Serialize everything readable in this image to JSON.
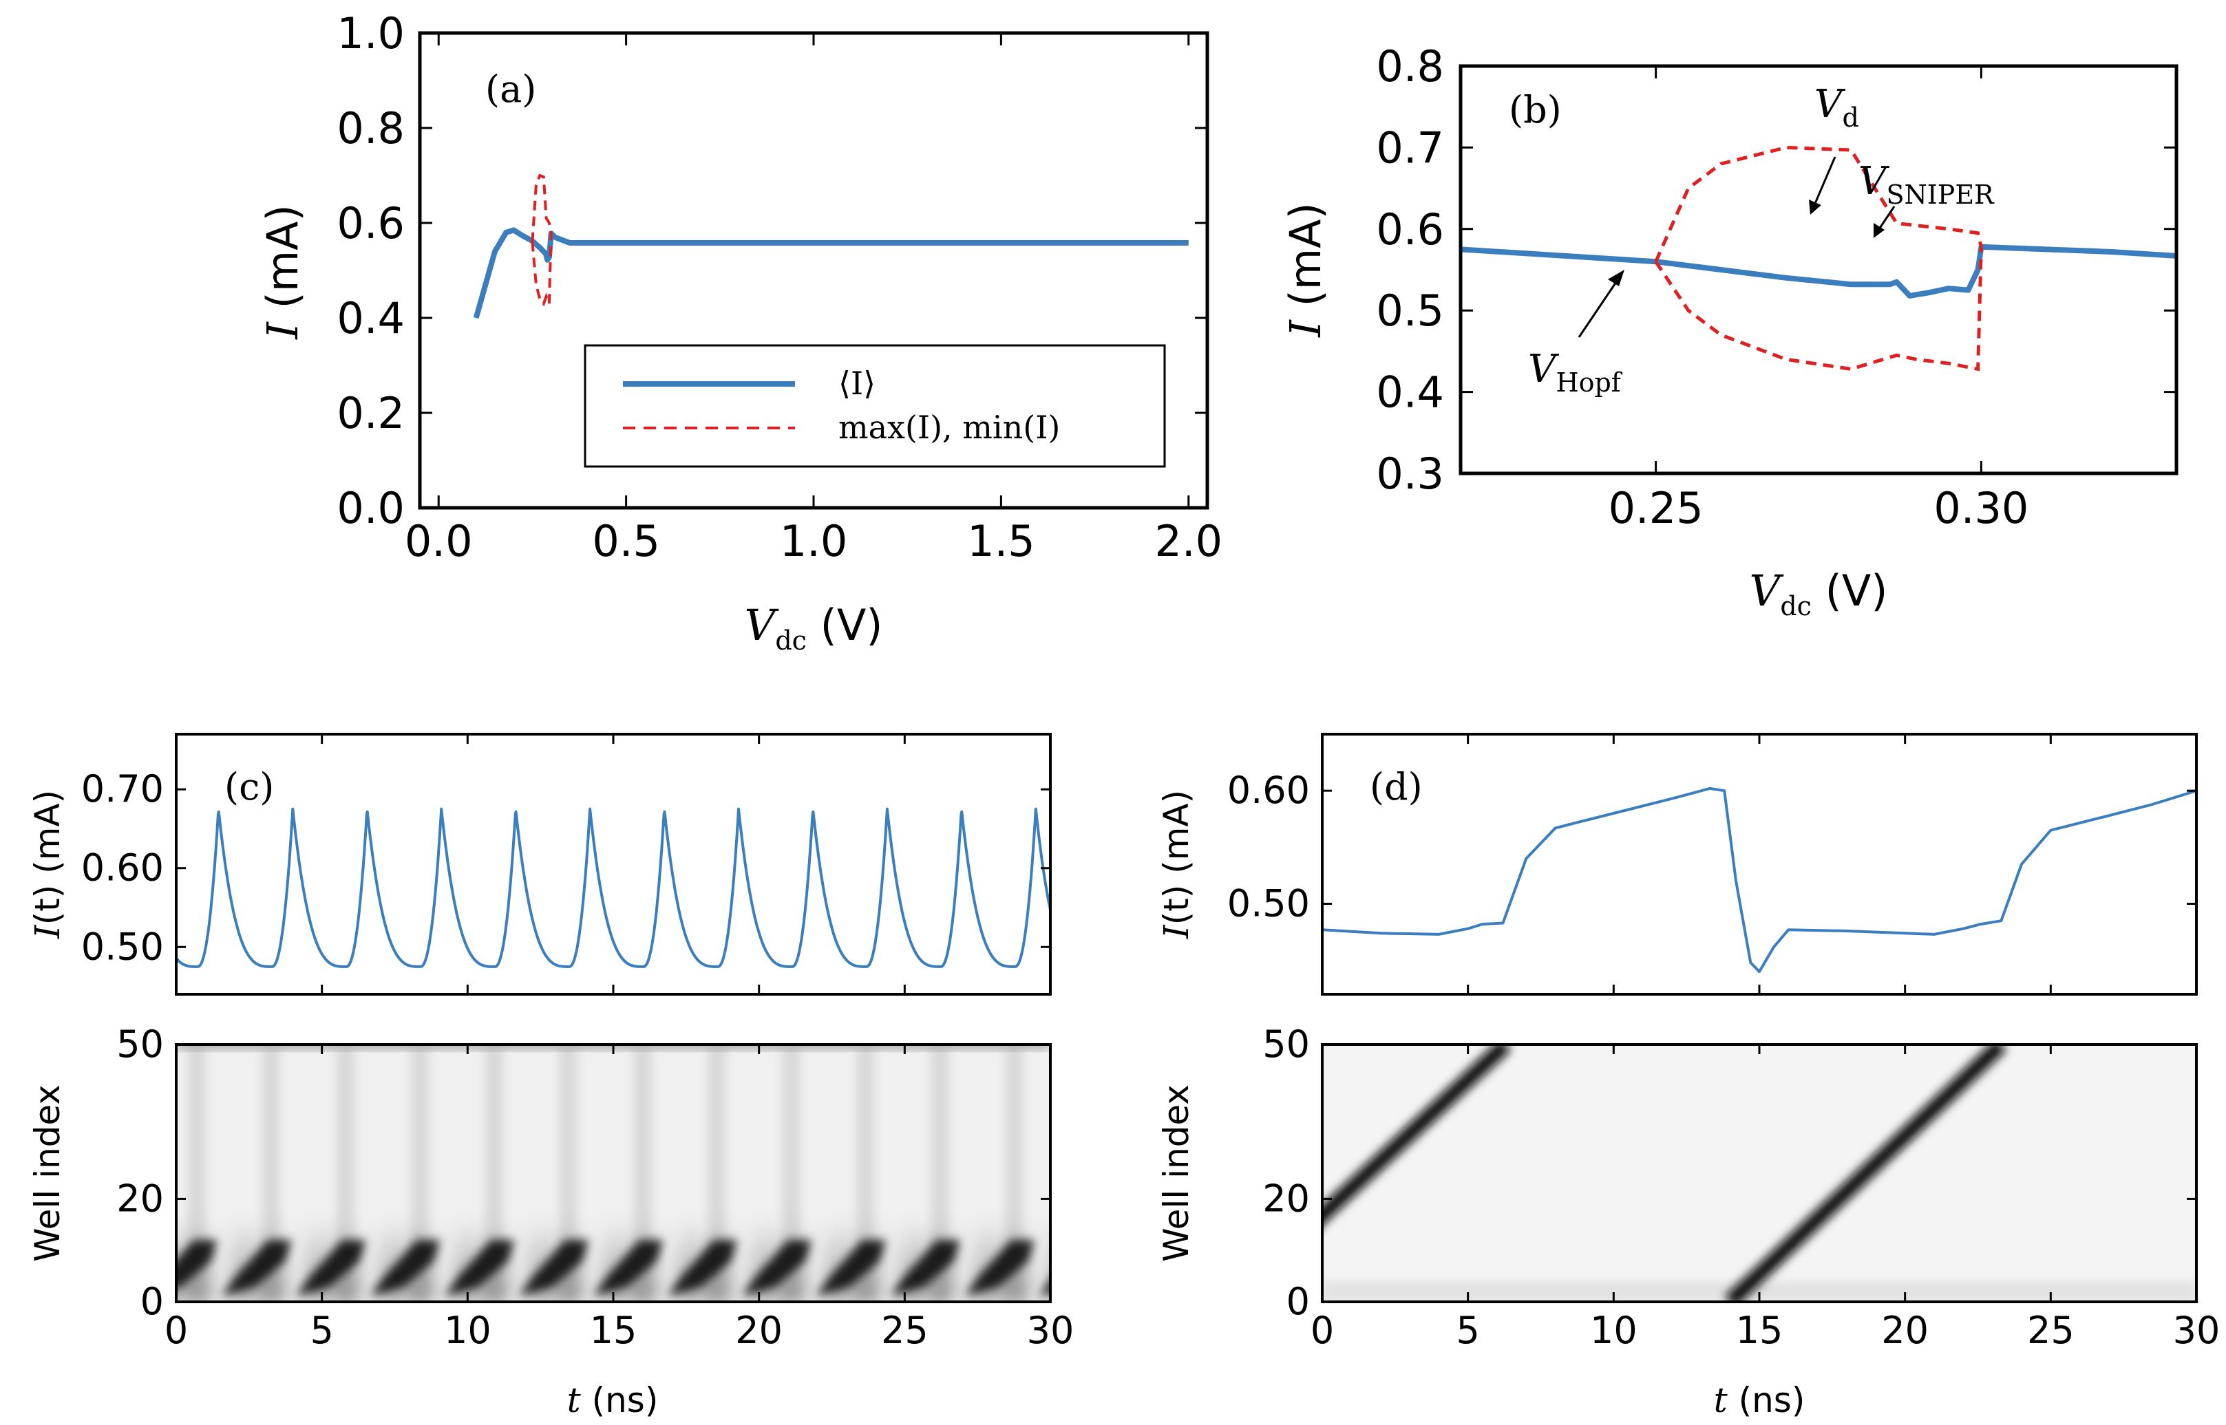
{
  "figure_colors": {
    "mean": "#3a7ebf",
    "extrema": "#e02020",
    "axis": "#000000"
  },
  "chart_data": [
    {
      "id": "a",
      "type": "line",
      "panel_label": "(a)",
      "xlabel_var": "V",
      "xlabel_sub": "dc",
      "xlabel_unit": " (V)",
      "ylabel_var": "I",
      "ylabel_unit": " (mA)",
      "xlim": [
        -0.05,
        2.05
      ],
      "ylim": [
        0.0,
        1.0
      ],
      "xticks": [
        "0.0",
        "0.5",
        "1.0",
        "1.5",
        "2.0"
      ],
      "xtick_values": [
        0.0,
        0.5,
        1.0,
        1.5,
        2.0
      ],
      "yticks": [
        "0.0",
        "0.2",
        "0.4",
        "0.6",
        "0.8",
        "1.0"
      ],
      "ytick_values": [
        0.0,
        0.2,
        0.4,
        0.6,
        0.8,
        1.0
      ],
      "legend": {
        "placement": "lower-right",
        "mean_label": "⟨I⟩",
        "extrema_label": "max(I), min(I)"
      },
      "series": [
        {
          "name": "⟨I⟩",
          "style": "solid",
          "x": [
            0.1,
            0.15,
            0.18,
            0.2,
            0.22,
            0.25,
            0.27,
            0.286,
            0.29,
            0.295,
            0.3,
            0.31,
            0.35,
            0.5,
            1.0,
            1.5,
            2.0
          ],
          "y": [
            0.4,
            0.54,
            0.58,
            0.585,
            0.575,
            0.562,
            0.548,
            0.535,
            0.522,
            0.528,
            0.578,
            0.57,
            0.558,
            0.558,
            0.558,
            0.558,
            0.558
          ]
        },
        {
          "name": "max(I)",
          "style": "dashed",
          "x": [
            0.25,
            0.26,
            0.27,
            0.28,
            0.287,
            0.295,
            0.3
          ],
          "y": [
            0.56,
            0.68,
            0.7,
            0.697,
            0.61,
            0.6,
            0.58
          ]
        },
        {
          "name": "min(I)",
          "style": "dashed",
          "x": [
            0.25,
            0.26,
            0.27,
            0.28,
            0.287,
            0.295,
            0.3
          ],
          "y": [
            0.56,
            0.47,
            0.44,
            0.43,
            0.445,
            0.43,
            0.58
          ]
        }
      ]
    },
    {
      "id": "b",
      "type": "line",
      "panel_label": "(b)",
      "xlabel_var": "V",
      "xlabel_sub": "dc",
      "xlabel_unit": " (V)",
      "ylabel_var": "I",
      "ylabel_unit": " (mA)",
      "xlim": [
        0.22,
        0.33
      ],
      "ylim": [
        0.3,
        0.8
      ],
      "xticks": [
        "0.25",
        "0.30"
      ],
      "xtick_values": [
        0.25,
        0.3
      ],
      "yticks": [
        "0.3",
        "0.4",
        "0.5",
        "0.6",
        "0.7",
        "0.8"
      ],
      "ytick_values": [
        0.3,
        0.4,
        0.5,
        0.6,
        0.7,
        0.8
      ],
      "annotations": {
        "hopf_var": "V",
        "hopf_sub": "Hopf",
        "d_var": "V",
        "d_sub": "d",
        "sniper_var": "V",
        "sniper_sub": "SNIPER"
      },
      "series": [
        {
          "name": "⟨I⟩",
          "style": "solid",
          "x": [
            0.22,
            0.23,
            0.24,
            0.25,
            0.26,
            0.27,
            0.28,
            0.286,
            0.287,
            0.289,
            0.292,
            0.295,
            0.298,
            0.2995,
            0.3,
            0.31,
            0.32,
            0.33
          ],
          "y": [
            0.575,
            0.57,
            0.565,
            0.56,
            0.55,
            0.54,
            0.532,
            0.532,
            0.535,
            0.518,
            0.522,
            0.527,
            0.525,
            0.55,
            0.578,
            0.575,
            0.572,
            0.567
          ]
        },
        {
          "name": "max(I)",
          "style": "dashed",
          "x": [
            0.25,
            0.255,
            0.26,
            0.265,
            0.27,
            0.28,
            0.287,
            0.295,
            0.2995,
            0.3
          ],
          "y": [
            0.56,
            0.65,
            0.68,
            0.69,
            0.7,
            0.697,
            0.607,
            0.6,
            0.595,
            0.578
          ]
        },
        {
          "name": "min(I)",
          "style": "dashed",
          "x": [
            0.25,
            0.255,
            0.26,
            0.27,
            0.28,
            0.287,
            0.29,
            0.295,
            0.2995,
            0.3
          ],
          "y": [
            0.56,
            0.5,
            0.47,
            0.44,
            0.428,
            0.445,
            0.44,
            0.435,
            0.428,
            0.578
          ]
        }
      ]
    },
    {
      "id": "c-top",
      "type": "line",
      "panel_label": "(c)",
      "ylabel_var": "I",
      "ylabel_arg": "(t)",
      "ylabel_unit": " (mA)",
      "xlim": [
        0,
        30
      ],
      "ylim": [
        0.44,
        0.77
      ],
      "yticks": [
        "0.50",
        "0.60",
        "0.70"
      ],
      "ytick_values": [
        0.5,
        0.6,
        0.7
      ],
      "period_ns": 2.55,
      "peak_value": 0.675,
      "trough_value": 0.475
    },
    {
      "id": "c-bottom",
      "type": "heatmap",
      "xlabel_var": "t",
      "xlabel_unit": " (ns)",
      "ylabel": "Well index",
      "xlim": [
        0,
        30
      ],
      "ylim": [
        0,
        50
      ],
      "xticks": [
        "0",
        "5",
        "10",
        "15",
        "20",
        "25",
        "30"
      ],
      "xtick_values": [
        0,
        5,
        10,
        15,
        20,
        25,
        30
      ],
      "yticks": [
        "0",
        "20",
        "50"
      ],
      "ytick_values": [
        0,
        20,
        50
      ],
      "pattern": "charge dipoles forming near well 0–15 and dissolving, period 2.55 ns"
    },
    {
      "id": "d-top",
      "type": "line",
      "panel_label": "(d)",
      "ylabel_var": "I",
      "ylabel_arg": "(t)",
      "ylabel_unit": " (mA)",
      "xlim": [
        0,
        30
      ],
      "ylim": [
        0.42,
        0.65
      ],
      "yticks": [
        "0.50",
        "0.60"
      ],
      "ytick_values": [
        0.5,
        0.6
      ],
      "t": [
        0,
        2,
        4,
        5,
        5.5,
        6.2,
        7,
        8,
        10,
        12,
        13.3,
        13.8,
        14.2,
        14.7,
        15,
        15.5,
        16,
        18,
        20,
        21,
        22,
        22.6,
        23.3,
        24,
        25,
        27,
        28.5,
        30
      ],
      "i": [
        0.477,
        0.474,
        0.473,
        0.478,
        0.482,
        0.483,
        0.54,
        0.567,
        0.58,
        0.593,
        0.602,
        0.6,
        0.52,
        0.448,
        0.44,
        0.462,
        0.477,
        0.476,
        0.474,
        0.473,
        0.478,
        0.482,
        0.485,
        0.535,
        0.565,
        0.578,
        0.588,
        0.6
      ]
    },
    {
      "id": "d-bottom",
      "type": "heatmap",
      "xlabel_var": "t",
      "xlabel_unit": " (ns)",
      "ylabel": "Well index",
      "xlim": [
        0,
        30
      ],
      "ylim": [
        0,
        50
      ],
      "xticks": [
        "0",
        "5",
        "10",
        "15",
        "20",
        "25",
        "30"
      ],
      "xtick_values": [
        0,
        5,
        10,
        15,
        20,
        25,
        30
      ],
      "yticks": [
        "0",
        "20",
        "50"
      ],
      "ytick_values": [
        0,
        20,
        50
      ],
      "fronts": [
        {
          "t_start": -3.2,
          "well_start": 0,
          "t_end": 6.3,
          "well_end": 50,
          "t_stop": 13.4
        },
        {
          "t_start": 14.0,
          "well_start": 0,
          "t_end": 23.3,
          "well_end": 50,
          "t_stop": 30
        }
      ]
    }
  ]
}
